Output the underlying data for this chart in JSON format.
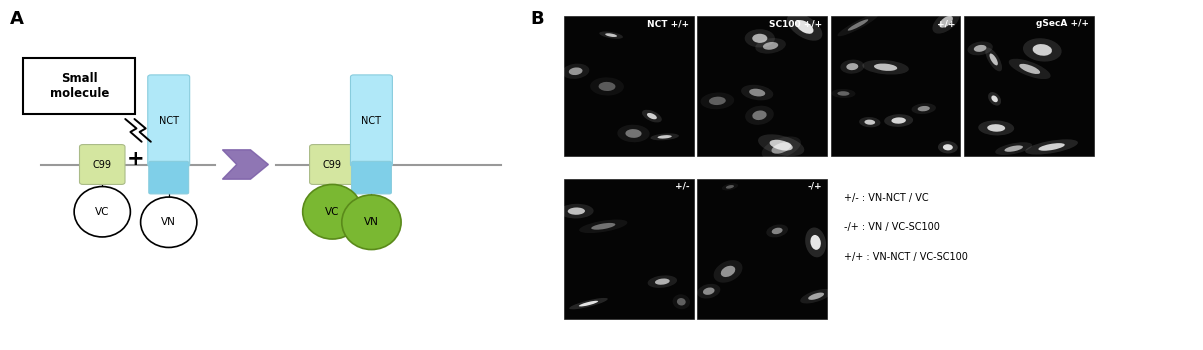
{
  "panel_A_label": "A",
  "panel_B_label": "B",
  "bg_color": "#ffffff",
  "c99_color": "#d4e6a0",
  "nct_color_top": "#b0e8f8",
  "nct_color_bot": "#7fcfe8",
  "vc_vn_white": "#ffffff",
  "vc_vn_green": "#7ab832",
  "vc_vn_green_edge": "#5a8a1a",
  "arrow_color": "#7b5ea7",
  "small_molecule_text": "Small\nmolecule",
  "plus_symbol": "+",
  "labels_top": [
    "NCT +/+",
    "SC100 +/+",
    "+/+",
    "gSecA +/+"
  ],
  "labels_bottom": [
    "+/-",
    "-/+"
  ],
  "legend_lines": [
    "+/- : VN-NCT / VC",
    "-/+ : VN / VC-SC100",
    "+/+ : VN-NCT / VC-SC100"
  ],
  "text_color_white": "#ffffff",
  "text_color_black": "#000000",
  "mem_color": "#999999"
}
